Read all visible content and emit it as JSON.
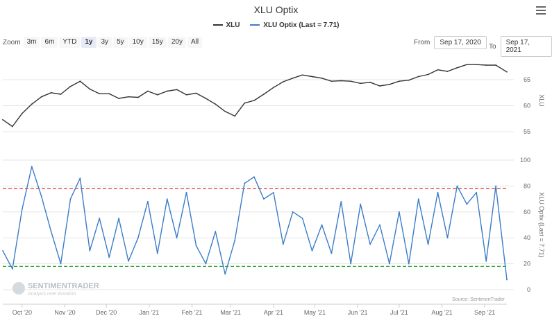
{
  "chart_title": "XLU Optix",
  "legend": [
    {
      "label": "XLU",
      "color": "#333333"
    },
    {
      "label": "XLU Optix (Last = 7.71)",
      "color": "#3a7cc8"
    }
  ],
  "zoom": {
    "label": "Zoom",
    "buttons": [
      "3m",
      "6m",
      "YTD",
      "1y",
      "3y",
      "5y",
      "10y",
      "15y",
      "20y",
      "All"
    ],
    "active": "1y"
  },
  "date_range": {
    "from_label": "From",
    "from_value": "Sep 17, 2020",
    "to_label": "To",
    "to_value": "Sep 17, 2021"
  },
  "watermark": {
    "name": "SENTIMENTRADER",
    "tagline": "Analysis over Emotion"
  },
  "source_note": "Source: SentimenTrader",
  "chart_data": {
    "type": "line",
    "x_axis": {
      "type": "date",
      "range": [
        "2020-09-17",
        "2021-09-17"
      ],
      "tick_labels": [
        "Oct '20",
        "Nov '20",
        "Dec '20",
        "Jan '21",
        "Feb '21",
        "Mar '21",
        "Apr '21",
        "May '21",
        "Jun '21",
        "Jul '21",
        "Aug '21",
        "Sep '21"
      ],
      "tick_dates": [
        "2020-10-01",
        "2020-11-01",
        "2020-12-01",
        "2021-01-01",
        "2021-02-01",
        "2021-03-01",
        "2021-04-01",
        "2021-05-01",
        "2021-06-01",
        "2021-07-01",
        "2021-08-01",
        "2021-09-01"
      ]
    },
    "panels": [
      {
        "ylabel": "XLU",
        "ylim": [
          53,
          69
        ],
        "y_ticks": [
          55,
          60,
          65
        ],
        "grid": true,
        "series": [
          {
            "name": "XLU",
            "color": "#333333",
            "x": [
              "2020-09-17",
              "2020-09-24",
              "2020-10-01",
              "2020-10-08",
              "2020-10-15",
              "2020-10-22",
              "2020-10-29",
              "2020-11-05",
              "2020-11-12",
              "2020-11-19",
              "2020-11-26",
              "2020-12-03",
              "2020-12-10",
              "2020-12-17",
              "2020-12-24",
              "2020-12-31",
              "2021-01-07",
              "2021-01-14",
              "2021-01-21",
              "2021-01-28",
              "2021-02-04",
              "2021-02-11",
              "2021-02-18",
              "2021-02-25",
              "2021-03-04",
              "2021-03-11",
              "2021-03-18",
              "2021-03-25",
              "2021-04-01",
              "2021-04-08",
              "2021-04-15",
              "2021-04-22",
              "2021-04-29",
              "2021-05-06",
              "2021-05-13",
              "2021-05-20",
              "2021-05-27",
              "2021-06-03",
              "2021-06-10",
              "2021-06-17",
              "2021-06-24",
              "2021-07-01",
              "2021-07-08",
              "2021-07-15",
              "2021-07-22",
              "2021-07-29",
              "2021-08-05",
              "2021-08-12",
              "2021-08-19",
              "2021-08-26",
              "2021-09-02",
              "2021-09-09",
              "2021-09-17"
            ],
            "values": [
              57.3,
              56.0,
              58.5,
              60.3,
              61.7,
              62.5,
              62.2,
              63.7,
              64.7,
              63.2,
              62.3,
              62.3,
              61.4,
              61.7,
              61.6,
              62.8,
              62.1,
              62.8,
              63.1,
              62.1,
              62.4,
              61.4,
              60.3,
              58.9,
              58.0,
              60.5,
              61.0,
              62.2,
              63.5,
              64.6,
              65.3,
              65.9,
              65.6,
              65.3,
              64.7,
              64.8,
              64.7,
              64.3,
              64.5,
              63.8,
              64.1,
              64.7,
              64.9,
              65.6,
              66.0,
              66.9,
              66.6,
              67.3,
              67.9,
              67.9,
              67.8,
              67.8,
              66.5
            ]
          }
        ]
      },
      {
        "ylabel": "XLU Optix (Last = 7.71)",
        "ylim": [
          0,
          100
        ],
        "y_ticks": [
          0,
          20,
          40,
          60,
          80,
          100
        ],
        "grid": true,
        "reference_lines": [
          {
            "value": 78,
            "color": "#e0312c",
            "style": "dashed"
          },
          {
            "value": 18,
            "color": "#22a32a",
            "style": "dashed"
          }
        ],
        "series": [
          {
            "name": "XLU Optix",
            "color": "#3a7cc8",
            "x": [
              "2020-09-17",
              "2020-09-24",
              "2020-10-01",
              "2020-10-08",
              "2020-10-15",
              "2020-10-22",
              "2020-10-29",
              "2020-11-05",
              "2020-11-12",
              "2020-11-19",
              "2020-11-26",
              "2020-12-03",
              "2020-12-10",
              "2020-12-17",
              "2020-12-24",
              "2020-12-31",
              "2021-01-07",
              "2021-01-14",
              "2021-01-21",
              "2021-01-28",
              "2021-02-04",
              "2021-02-11",
              "2021-02-18",
              "2021-02-25",
              "2021-03-04",
              "2021-03-11",
              "2021-03-18",
              "2021-03-25",
              "2021-04-01",
              "2021-04-08",
              "2021-04-15",
              "2021-04-22",
              "2021-04-29",
              "2021-05-06",
              "2021-05-13",
              "2021-05-20",
              "2021-05-27",
              "2021-06-03",
              "2021-06-10",
              "2021-06-17",
              "2021-06-24",
              "2021-07-01",
              "2021-07-08",
              "2021-07-15",
              "2021-07-22",
              "2021-07-29",
              "2021-08-05",
              "2021-08-12",
              "2021-08-19",
              "2021-08-26",
              "2021-09-02",
              "2021-09-09",
              "2021-09-17"
            ],
            "values": [
              30,
              16,
              62,
              95,
              72,
              45,
              20,
              70,
              86,
              30,
              55,
              25,
              55,
              22,
              40,
              68,
              28,
              70,
              40,
              75,
              34,
              20,
              45,
              12,
              38,
              82,
              87,
              70,
              75,
              35,
              60,
              55,
              30,
              50,
              28,
              68,
              20,
              66,
              35,
              50,
              20,
              60,
              20,
              70,
              35,
              75,
              40,
              80,
              66,
              75,
              22,
              80,
              7.71
            ]
          }
        ]
      }
    ]
  }
}
